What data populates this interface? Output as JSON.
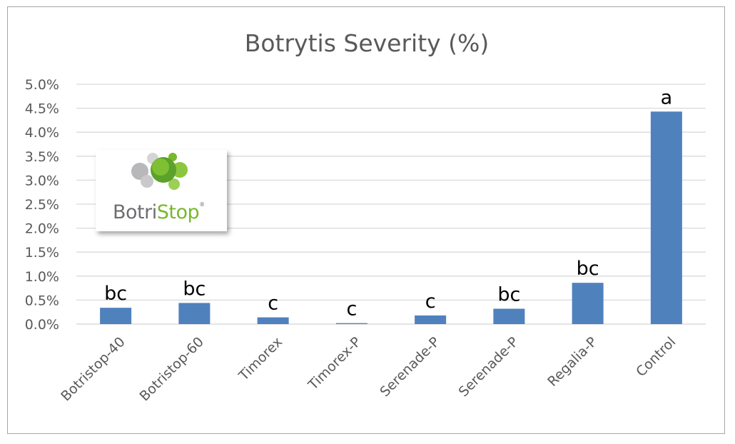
{
  "chart_data": {
    "type": "bar",
    "title": "Botrytis Severity (%)",
    "categories": [
      "Botristop-40",
      "Botristop-60",
      "Timorex",
      "Timorex-P",
      "Serenade-P",
      "Serenade-P",
      "Regalia-P",
      "Control"
    ],
    "values": [
      0.34,
      0.44,
      0.14,
      0.02,
      0.18,
      0.32,
      0.86,
      4.43
    ],
    "annotations": [
      "bc",
      "bc",
      "c",
      "c",
      "c",
      "bc",
      "bc",
      "a"
    ],
    "ylim": [
      0,
      5
    ],
    "yticks": [
      "0.0%",
      "0.5%",
      "1.0%",
      "1.5%",
      "2.0%",
      "2.5%",
      "3.0%",
      "3.5%",
      "4.0%",
      "4.5%",
      "5.0%"
    ],
    "xlabel": "",
    "ylabel": "",
    "grid": true,
    "bar_color": "#4f81bd",
    "grid_color": "#d9d9d9"
  },
  "logo": {
    "text_part1": "Botri",
    "text_part2": "Stop",
    "reg_mark": "®",
    "icon": "botristop-cells-logo",
    "colors": {
      "grey": "#6d6e71",
      "green": "#78b82a"
    }
  }
}
